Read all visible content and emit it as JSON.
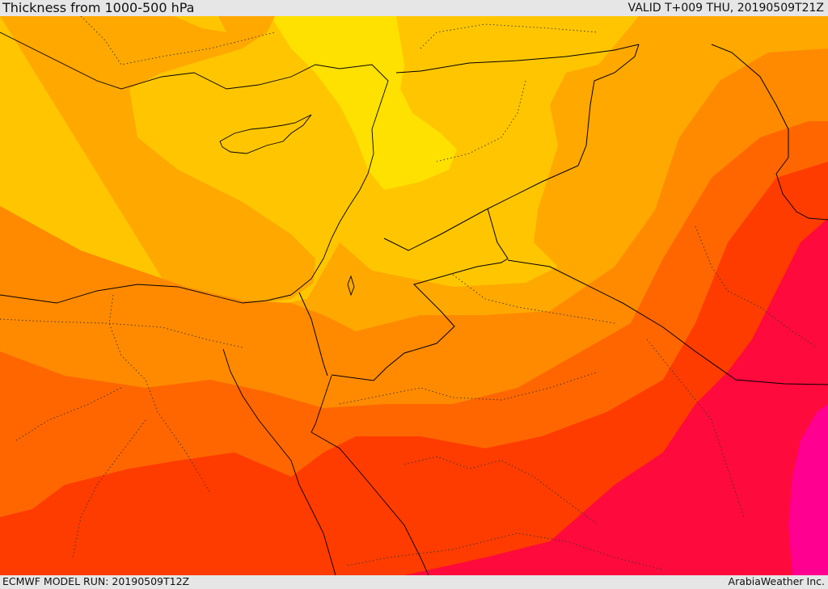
{
  "header": {
    "title": "Thickness from 1000-500 hPa",
    "valid_time": "VALID T+009 THU, 20190509T21Z"
  },
  "footer": {
    "model_run": "ECMWF MODEL RUN: 20190509T12Z",
    "credit": "ArabiaWeather Inc."
  },
  "map": {
    "field": "1000-500 hPa thickness",
    "palette": [
      "#ffe100",
      "#ffc600",
      "#ffa800",
      "#ff8a00",
      "#ff6600",
      "#ff3c00",
      "#ff0a3c",
      "#ff0090"
    ],
    "border_color": "#000000"
  }
}
